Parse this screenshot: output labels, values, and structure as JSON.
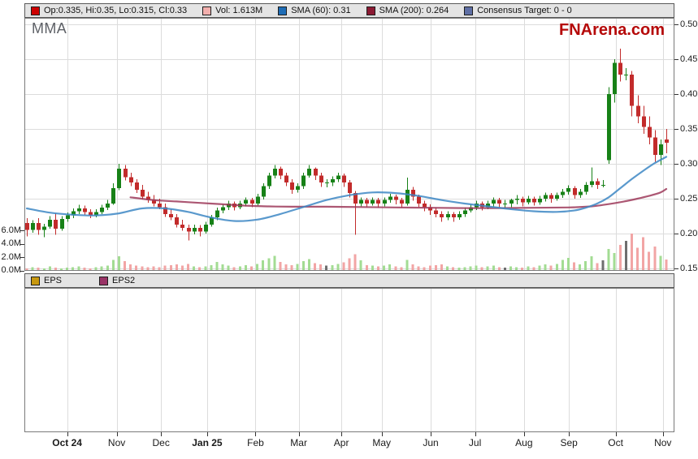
{
  "header": {
    "symbol": "MMA",
    "brand": "FNArena.com"
  },
  "price_legend": {
    "items": [
      {
        "name": "ohlc",
        "label": "Op:0.335, Hi:0.35, Lo:0.315, Cl:0.33",
        "color": "#CC0000"
      },
      {
        "name": "volume",
        "label": "Vol: 1.613M",
        "color": "#F2AFAD"
      },
      {
        "name": "sma60",
        "label": "SMA (60): 0.31",
        "color": "#1E6CB5"
      },
      {
        "name": "sma200",
        "label": "SMA (200): 0.264",
        "color": "#8B1A33"
      },
      {
        "name": "consensus",
        "label": "Consensus Target: 0 - 0",
        "color": "#5F6FA5"
      }
    ]
  },
  "eps_legend": {
    "items": [
      {
        "name": "eps",
        "label": "EPS",
        "color": "#C79810"
      },
      {
        "name": "eps2",
        "label": "EPS2",
        "color": "#993366"
      }
    ]
  },
  "chart_data": {
    "type": "candlestick",
    "title": "MMA daily price with volume, SMA(60), SMA(200)",
    "price_axis": {
      "side": "right",
      "ylim": [
        0.15,
        0.5
      ],
      "ticks": [
        0.5,
        0.45,
        0.4,
        0.35,
        0.3,
        0.25,
        0.2,
        0.15
      ],
      "grid": true
    },
    "volume_axis": {
      "side": "left",
      "unit": "M",
      "ticks": [
        {
          "v": 6,
          "label": "6.0M"
        },
        {
          "v": 4,
          "label": "4.0M"
        },
        {
          "v": 2,
          "label": "2.0M"
        },
        {
          "v": 0,
          "label": "0.0M"
        }
      ]
    },
    "x_axis": {
      "months": [
        {
          "label": "Oct 24",
          "pos": 7,
          "bold": true
        },
        {
          "label": "Nov",
          "pos": 15.6,
          "bold": false
        },
        {
          "label": "Dec",
          "pos": 23.3,
          "bold": false
        },
        {
          "label": "Jan 25",
          "pos": 31.3,
          "bold": true
        },
        {
          "label": "Feb",
          "pos": 39.7,
          "bold": false
        },
        {
          "label": "Mar",
          "pos": 47.2,
          "bold": false
        },
        {
          "label": "Apr",
          "pos": 54.6,
          "bold": false
        },
        {
          "label": "May",
          "pos": 61.6,
          "bold": false
        },
        {
          "label": "Jun",
          "pos": 70.1,
          "bold": false
        },
        {
          "label": "Jul",
          "pos": 77.8,
          "bold": false
        },
        {
          "label": "Aug",
          "pos": 86.3,
          "bold": false
        },
        {
          "label": "Sep",
          "pos": 94.1,
          "bold": false
        },
        {
          "label": "Oct",
          "pos": 102.2,
          "bold": false
        },
        {
          "label": "Nov",
          "pos": 110.4,
          "bold": false
        }
      ]
    },
    "colors": {
      "up": "#178117",
      "down": "#C22B2B",
      "vol_up": "#A3DC93",
      "vol_down": "#F2A5A5",
      "vol_neutral": "#6E6E6E",
      "grid": "#DCDCDC",
      "border": "#7A7A7A",
      "tick": "#333333",
      "sma60": "#3D87C4",
      "sma200": "#9E3A5A"
    },
    "candles": [
      [
        0.215,
        0.222,
        0.196,
        0.205
      ],
      [
        0.205,
        0.219,
        0.201,
        0.215
      ],
      [
        0.215,
        0.222,
        0.198,
        0.205
      ],
      [
        0.205,
        0.214,
        0.195,
        0.21
      ],
      [
        0.21,
        0.225,
        0.207,
        0.22
      ],
      [
        0.22,
        0.229,
        0.198,
        0.207
      ],
      [
        0.207,
        0.225,
        0.204,
        0.221
      ],
      [
        0.221,
        0.23,
        0.217,
        0.226
      ],
      [
        0.226,
        0.236,
        0.222,
        0.232
      ],
      [
        0.232,
        0.241,
        0.228,
        0.236
      ],
      [
        0.236,
        0.24,
        0.227,
        0.231
      ],
      [
        0.231,
        0.235,
        0.222,
        0.226
      ],
      [
        0.226,
        0.235,
        0.223,
        0.231
      ],
      [
        0.231,
        0.241,
        0.228,
        0.237
      ],
      [
        0.237,
        0.248,
        0.234,
        0.243
      ],
      [
        0.243,
        0.272,
        0.241,
        0.265
      ],
      [
        0.265,
        0.3,
        0.262,
        0.293
      ],
      [
        0.293,
        0.298,
        0.276,
        0.281
      ],
      [
        0.281,
        0.287,
        0.268,
        0.273
      ],
      [
        0.273,
        0.278,
        0.258,
        0.263
      ],
      [
        0.263,
        0.27,
        0.249,
        0.253
      ],
      [
        0.253,
        0.26,
        0.244,
        0.248
      ],
      [
        0.248,
        0.255,
        0.239,
        0.243
      ],
      [
        0.243,
        0.25,
        0.235,
        0.238
      ],
      [
        0.238,
        0.243,
        0.224,
        0.228
      ],
      [
        0.228,
        0.235,
        0.219,
        0.223
      ],
      [
        0.223,
        0.228,
        0.209,
        0.213
      ],
      [
        0.213,
        0.22,
        0.204,
        0.208
      ],
      [
        0.208,
        0.213,
        0.19,
        0.203
      ],
      [
        0.203,
        0.213,
        0.199,
        0.208
      ],
      [
        0.208,
        0.212,
        0.196,
        0.203
      ],
      [
        0.203,
        0.217,
        0.2,
        0.213
      ],
      [
        0.213,
        0.227,
        0.21,
        0.223
      ],
      [
        0.223,
        0.237,
        0.219,
        0.233
      ],
      [
        0.233,
        0.242,
        0.229,
        0.238
      ],
      [
        0.238,
        0.247,
        0.234,
        0.243
      ],
      [
        0.243,
        0.246,
        0.233,
        0.238
      ],
      [
        0.238,
        0.247,
        0.235,
        0.243
      ],
      [
        0.243,
        0.252,
        0.239,
        0.248
      ],
      [
        0.248,
        0.251,
        0.238,
        0.243
      ],
      [
        0.243,
        0.257,
        0.24,
        0.253
      ],
      [
        0.253,
        0.272,
        0.249,
        0.268
      ],
      [
        0.268,
        0.287,
        0.264,
        0.283
      ],
      [
        0.283,
        0.298,
        0.279,
        0.293
      ],
      [
        0.293,
        0.296,
        0.278,
        0.283
      ],
      [
        0.283,
        0.287,
        0.268,
        0.273
      ],
      [
        0.273,
        0.278,
        0.257,
        0.263
      ],
      [
        0.263,
        0.272,
        0.259,
        0.268
      ],
      [
        0.268,
        0.287,
        0.264,
        0.283
      ],
      [
        0.283,
        0.298,
        0.28,
        0.293
      ],
      [
        0.293,
        0.295,
        0.277,
        0.283
      ],
      [
        0.283,
        0.287,
        0.267,
        0.273
      ],
      [
        0.273,
        0.278,
        0.266,
        0.273
      ],
      [
        0.273,
        0.282,
        0.268,
        0.278
      ],
      [
        0.278,
        0.287,
        0.274,
        0.283
      ],
      [
        0.283,
        0.286,
        0.267,
        0.273
      ],
      [
        0.273,
        0.277,
        0.252,
        0.258
      ],
      [
        0.258,
        0.261,
        0.198,
        0.243
      ],
      [
        0.243,
        0.252,
        0.239,
        0.248
      ],
      [
        0.248,
        0.251,
        0.238,
        0.243
      ],
      [
        0.243,
        0.252,
        0.24,
        0.248
      ],
      [
        0.248,
        0.251,
        0.237,
        0.243
      ],
      [
        0.243,
        0.252,
        0.239,
        0.248
      ],
      [
        0.248,
        0.257,
        0.244,
        0.253
      ],
      [
        0.253,
        0.256,
        0.242,
        0.248
      ],
      [
        0.248,
        0.251,
        0.237,
        0.243
      ],
      [
        0.243,
        0.28,
        0.24,
        0.263
      ],
      [
        0.263,
        0.267,
        0.247,
        0.253
      ],
      [
        0.253,
        0.256,
        0.238,
        0.243
      ],
      [
        0.243,
        0.247,
        0.232,
        0.238
      ],
      [
        0.238,
        0.242,
        0.227,
        0.233
      ],
      [
        0.233,
        0.237,
        0.223,
        0.228
      ],
      [
        0.228,
        0.232,
        0.217,
        0.223
      ],
      [
        0.223,
        0.232,
        0.219,
        0.228
      ],
      [
        0.228,
        0.231,
        0.217,
        0.223
      ],
      [
        0.223,
        0.232,
        0.22,
        0.228
      ],
      [
        0.228,
        0.237,
        0.224,
        0.233
      ],
      [
        0.233,
        0.242,
        0.23,
        0.238
      ],
      [
        0.238,
        0.247,
        0.234,
        0.243
      ],
      [
        0.243,
        0.246,
        0.233,
        0.238
      ],
      [
        0.238,
        0.247,
        0.235,
        0.243
      ],
      [
        0.243,
        0.252,
        0.239,
        0.248
      ],
      [
        0.248,
        0.251,
        0.238,
        0.243
      ],
      [
        0.243,
        0.248,
        0.236,
        0.243
      ],
      [
        0.243,
        0.25,
        0.238,
        0.248
      ],
      [
        0.248,
        0.255,
        0.242,
        0.25
      ],
      [
        0.25,
        0.253,
        0.239,
        0.245
      ],
      [
        0.245,
        0.254,
        0.242,
        0.25
      ],
      [
        0.25,
        0.253,
        0.24,
        0.245
      ],
      [
        0.245,
        0.254,
        0.241,
        0.25
      ],
      [
        0.25,
        0.259,
        0.246,
        0.255
      ],
      [
        0.255,
        0.258,
        0.244,
        0.25
      ],
      [
        0.25,
        0.259,
        0.247,
        0.255
      ],
      [
        0.255,
        0.264,
        0.251,
        0.26
      ],
      [
        0.26,
        0.269,
        0.256,
        0.265
      ],
      [
        0.265,
        0.268,
        0.25,
        0.255
      ],
      [
        0.255,
        0.264,
        0.251,
        0.26
      ],
      [
        0.26,
        0.274,
        0.256,
        0.27
      ],
      [
        0.27,
        0.295,
        0.266,
        0.275
      ],
      [
        0.275,
        0.279,
        0.264,
        0.27
      ],
      [
        0.27,
        0.277,
        0.266,
        0.27
      ],
      [
        0.305,
        0.41,
        0.3,
        0.4
      ],
      [
        0.4,
        0.45,
        0.388,
        0.445
      ],
      [
        0.445,
        0.465,
        0.418,
        0.428
      ],
      [
        0.428,
        0.437,
        0.42,
        0.428
      ],
      [
        0.428,
        0.433,
        0.368,
        0.383
      ],
      [
        0.383,
        0.398,
        0.358,
        0.368
      ],
      [
        0.368,
        0.383,
        0.343,
        0.353
      ],
      [
        0.353,
        0.368,
        0.328,
        0.338
      ],
      [
        0.338,
        0.348,
        0.303,
        0.313
      ],
      [
        0.313,
        0.335,
        0.298,
        0.328
      ],
      [
        0.335,
        0.35,
        0.315,
        0.33
      ]
    ],
    "volumes": [
      0.3,
      0.5,
      0.4,
      0.3,
      0.6,
      0.4,
      0.3,
      0.4,
      0.5,
      0.6,
      0.4,
      0.3,
      0.5,
      0.6,
      0.7,
      1.6,
      2.1,
      1.4,
      0.9,
      0.7,
      0.6,
      0.5,
      0.6,
      0.5,
      0.7,
      0.8,
      0.9,
      0.7,
      1.0,
      0.6,
      0.5,
      0.6,
      0.8,
      1.3,
      0.9,
      0.7,
      0.5,
      0.6,
      0.8,
      0.6,
      1.0,
      1.5,
      1.8,
      2.2,
      1.3,
      0.9,
      0.8,
      1.0,
      1.4,
      1.7,
      1.1,
      0.9,
      0.7,
      0.8,
      1.0,
      1.2,
      1.8,
      2.4,
      1.5,
      0.8,
      0.7,
      0.6,
      0.7,
      0.9,
      0.6,
      0.5,
      1.6,
      0.9,
      0.6,
      0.5,
      0.7,
      0.8,
      0.9,
      0.6,
      0.5,
      0.4,
      0.5,
      0.6,
      0.7,
      0.5,
      0.6,
      0.7,
      0.5,
      0.4,
      0.6,
      0.5,
      0.4,
      0.6,
      0.5,
      0.7,
      0.9,
      0.7,
      1.0,
      1.6,
      1.9,
      1.2,
      0.9,
      1.4,
      2.1,
      1.1,
      1.5,
      3.2,
      2.6,
      3.8,
      4.4,
      5.5,
      3.4,
      5.0,
      2.8,
      3.6,
      2.2,
      1.613
    ],
    "sma60": {
      "label": "SMA (60)",
      "last": 0.31,
      "points": [
        [
          0,
          0.236
        ],
        [
          4,
          0.23
        ],
        [
          8,
          0.227
        ],
        [
          12,
          0.226
        ],
        [
          16,
          0.229
        ],
        [
          20,
          0.236
        ],
        [
          24,
          0.236
        ],
        [
          28,
          0.231
        ],
        [
          32,
          0.223
        ],
        [
          36,
          0.218
        ],
        [
          40,
          0.22
        ],
        [
          44,
          0.228
        ],
        [
          48,
          0.238
        ],
        [
          52,
          0.248
        ],
        [
          56,
          0.255
        ],
        [
          60,
          0.259
        ],
        [
          64,
          0.258
        ],
        [
          68,
          0.254
        ],
        [
          72,
          0.248
        ],
        [
          76,
          0.243
        ],
        [
          80,
          0.239
        ],
        [
          84,
          0.235
        ],
        [
          88,
          0.232
        ],
        [
          92,
          0.231
        ],
        [
          95,
          0.233
        ],
        [
          97,
          0.237
        ],
        [
          99,
          0.243
        ],
        [
          101,
          0.252
        ],
        [
          103,
          0.265
        ],
        [
          105,
          0.278
        ],
        [
          107,
          0.29
        ],
        [
          109,
          0.301
        ],
        [
          111,
          0.31
        ]
      ]
    },
    "sma200": {
      "label": "SMA (200)",
      "last": 0.264,
      "points": [
        [
          18,
          0.252
        ],
        [
          22,
          0.248
        ],
        [
          26,
          0.246
        ],
        [
          30,
          0.244
        ],
        [
          34,
          0.242
        ],
        [
          38,
          0.24
        ],
        [
          42,
          0.239
        ],
        [
          46,
          0.2385
        ],
        [
          52,
          0.2385
        ],
        [
          58,
          0.238
        ],
        [
          64,
          0.2375
        ],
        [
          70,
          0.237
        ],
        [
          76,
          0.2365
        ],
        [
          82,
          0.2365
        ],
        [
          88,
          0.237
        ],
        [
          94,
          0.2375
        ],
        [
          98,
          0.239
        ],
        [
          100,
          0.241
        ],
        [
          102,
          0.2435
        ],
        [
          104,
          0.2465
        ],
        [
          106,
          0.25
        ],
        [
          108,
          0.254
        ],
        [
          110,
          0.259
        ],
        [
          111,
          0.264
        ]
      ]
    },
    "consensus_target": {
      "label": "Consensus Target",
      "value": "0 - 0"
    },
    "eps_chart": {
      "series": [
        {
          "name": "EPS",
          "values": []
        },
        {
          "name": "EPS2",
          "values": []
        }
      ]
    }
  }
}
